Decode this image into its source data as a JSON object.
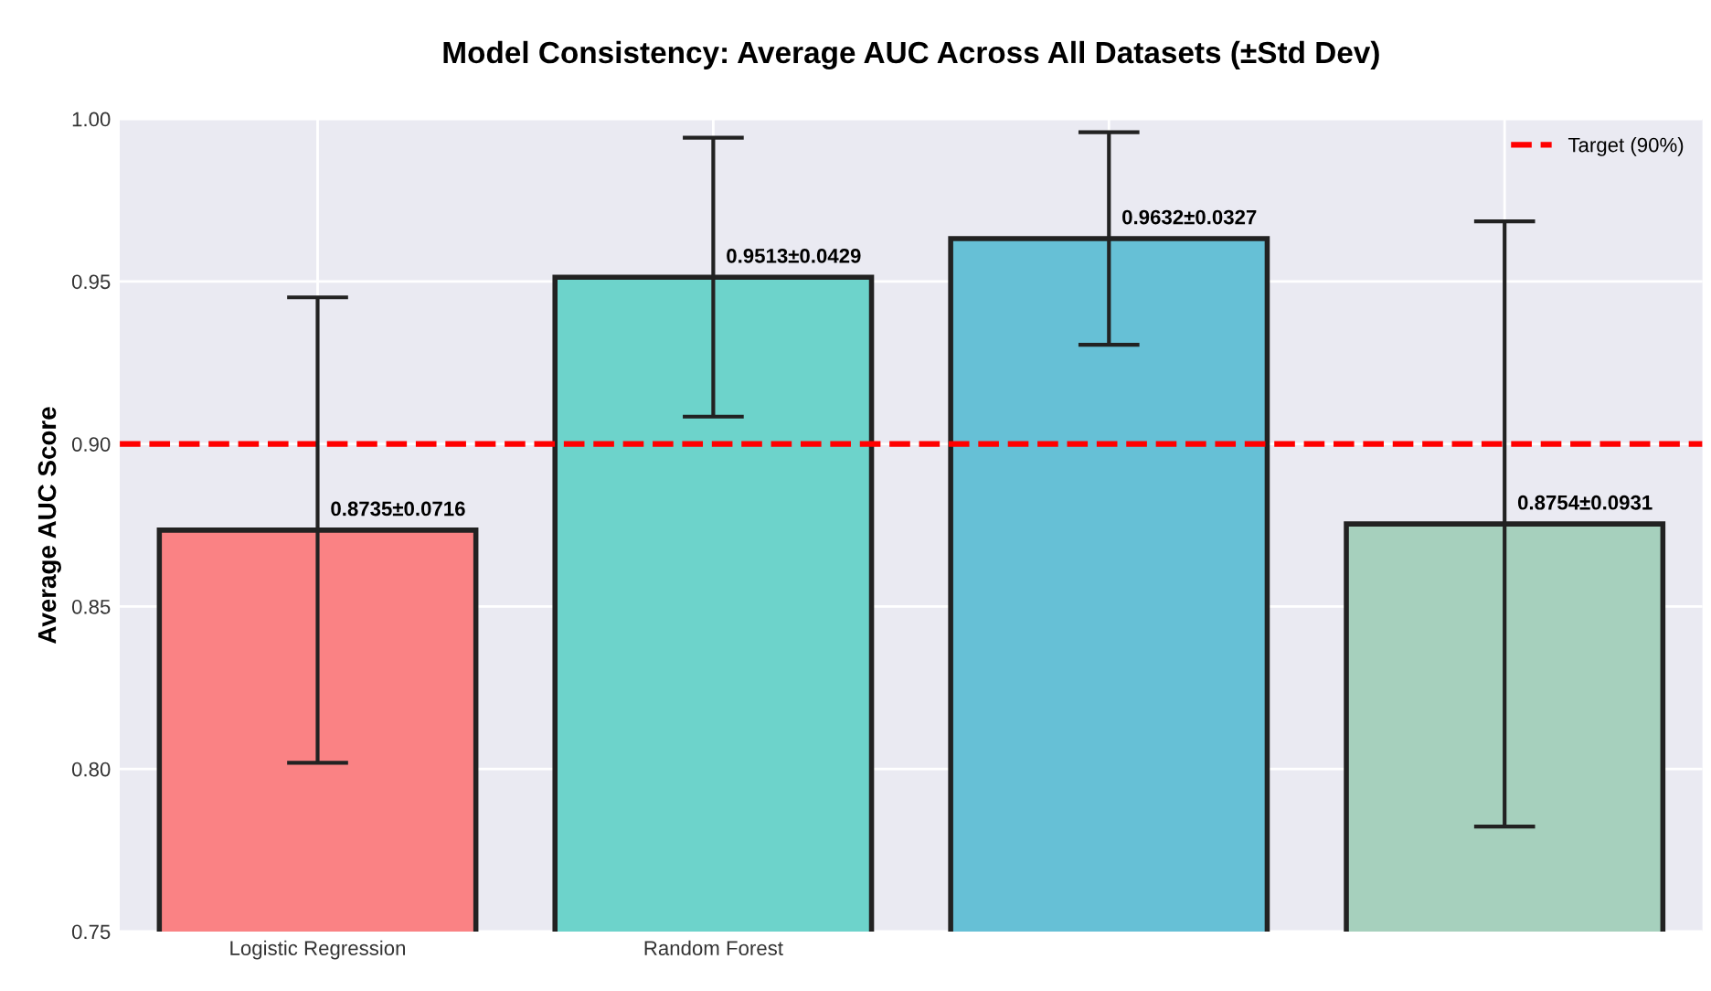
{
  "chart_data": {
    "type": "bar",
    "title": "Model Consistency: Average AUC Across All Datasets (±Std Dev)",
    "ylabel": "Average AUC Score",
    "categories": [
      "Logistic Regression",
      "Random Forest",
      null,
      null
    ],
    "values": [
      0.8735,
      0.9513,
      0.9632,
      0.8754
    ],
    "colors": [
      "#fa8284",
      "#6dd3cb",
      "#66c0d6",
      "#a6d0bd"
    ],
    "errors": [
      0.0716,
      0.0429,
      0.0327,
      0.0931
    ],
    "value_labels": [
      "0.8735±0.0716",
      "0.9513±0.0429",
      "0.9632±0.0327",
      "0.8754±0.0931"
    ],
    "ylim": [
      0.75,
      1.0
    ],
    "yticks": [
      0.75,
      {
        "value": 0.8,
        "label": "0.80"
      },
      0.85,
      {
        "value": 0.9,
        "label": "0.90"
      },
      0.95,
      {
        "value": 1.0,
        "label": "1.00"
      }
    ],
    "ref_lines": [
      {
        "axis": "y",
        "value": 0.9,
        "label": "Target (90%)",
        "color": "#ff0000",
        "line_style": "dashed"
      }
    ],
    "grid": true,
    "legend": "top right"
  }
}
